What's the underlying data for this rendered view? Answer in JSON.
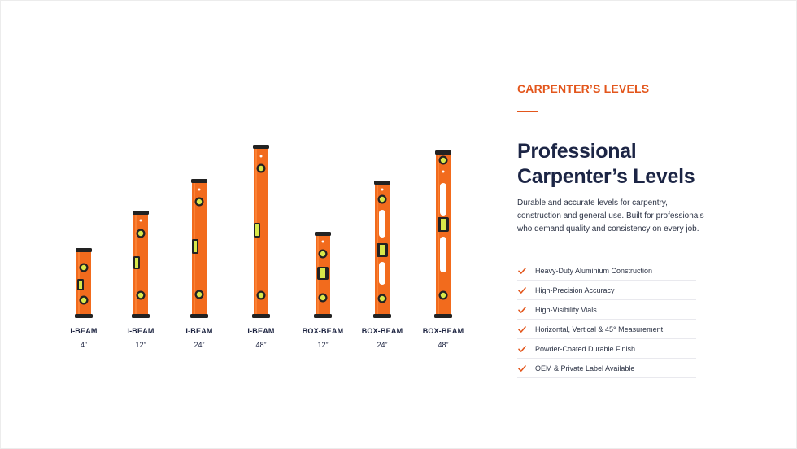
{
  "section": {
    "eyebrow": "CARPENTER’S LEVELS",
    "headline_line1": "Professional",
    "headline_line2": "Carpenter’s Levels",
    "description": "Durable and accurate levels for carpentry, construction and general use. Built for professionals who demand quality and consistency on every job."
  },
  "features": [
    "Heavy-Duty Aluminium Construction",
    "High-Precision Accuracy",
    "High-Visibility Vials",
    "Horizontal, Vertical & 45° Measurement",
    "Powder-Coated Durable Finish",
    "OEM & Private Label Available"
  ],
  "products": [
    {
      "type": "I-BEAM",
      "size": "4”"
    },
    {
      "type": "I-BEAM",
      "size": "12”"
    },
    {
      "type": "I-BEAM",
      "size": "24”"
    },
    {
      "type": "I-BEAM",
      "size": "48”"
    },
    {
      "type": "BOX-BEAM",
      "size": "12”"
    },
    {
      "type": "BOX-BEAM",
      "size": "24”"
    },
    {
      "type": "BOX-BEAM",
      "size": "48”"
    }
  ],
  "colors": {
    "accent": "#e3561c",
    "level_orange": "#f26b1d",
    "navy": "#1c2545",
    "vial": "#d8e84a"
  },
  "icons": {
    "check": "check-icon"
  }
}
